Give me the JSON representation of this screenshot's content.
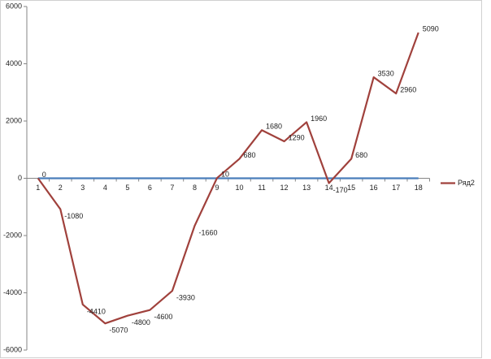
{
  "chart_data": {
    "type": "line",
    "categories": [
      "1",
      "2",
      "3",
      "4",
      "5",
      "6",
      "7",
      "8",
      "9",
      "10",
      "11",
      "12",
      "13",
      "14",
      "15",
      "16",
      "17",
      "18"
    ],
    "series": [
      {
        "color": "#4a7ebb",
        "values": [
          0,
          0,
          0,
          0,
          0,
          0,
          0,
          0,
          0,
          0,
          0,
          0,
          0,
          0,
          0,
          0,
          0,
          0
        ]
      },
      {
        "name": "Ряд2",
        "color": "#a0413c",
        "values": [
          0,
          -1080,
          -4410,
          -5070,
          -4800,
          -4600,
          -3930,
          -1660,
          10,
          680,
          1680,
          1290,
          1960,
          -170,
          680,
          3530,
          2960,
          5090
        ]
      }
    ],
    "data_labels_series": 1,
    "ylim": [
      -6000,
      6000
    ],
    "yticks": [
      -6000,
      -4000,
      -2000,
      0,
      2000,
      4000,
      6000
    ],
    "grid": false,
    "legend": "right"
  }
}
